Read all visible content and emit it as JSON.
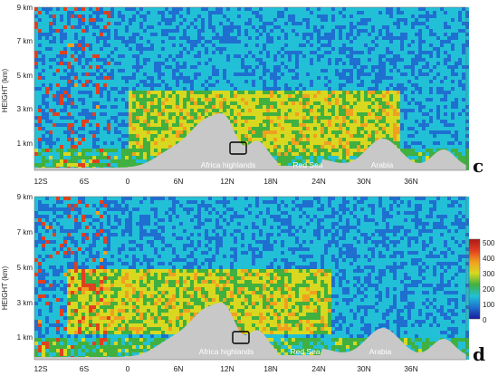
{
  "chart_data": [
    {
      "type": "heatmap",
      "panel_label": "c",
      "ylabel": "HEIGHT (km)",
      "y_ticks": [
        "9 km",
        "7 km",
        "5 km",
        "3 km",
        "1 km"
      ],
      "y_tick_values": [
        9,
        7,
        5,
        3,
        1
      ],
      "ylim": [
        0,
        9
      ],
      "x_ticks": [
        "12S",
        "6S",
        "0",
        "6N",
        "12N",
        "18N",
        "24N",
        "30N",
        "36N"
      ],
      "x_tick_values": [
        -12,
        -6,
        0,
        6,
        12,
        18,
        24,
        30,
        36
      ],
      "xlim": [
        -15,
        42
      ],
      "annotations": [
        "Africa highlands",
        "Red Sea",
        "Arabia"
      ],
      "layer": {
        "lat_start": -3,
        "lat_end": 33,
        "base_km": 1.0,
        "top_km": 4.6
      }
    },
    {
      "type": "heatmap",
      "panel_label": "d",
      "ylabel": "HEIGHT (km)",
      "y_ticks": [
        "9 km",
        "7 km",
        "5 km",
        "3 km",
        "1 km"
      ],
      "y_tick_values": [
        9,
        7,
        5,
        3,
        1
      ],
      "ylim": [
        0,
        9
      ],
      "x_ticks": [
        "12S",
        "6S",
        "0",
        "6N",
        "12N",
        "18N",
        "24N",
        "30N",
        "36N"
      ],
      "x_tick_values": [
        -12,
        -6,
        0,
        6,
        12,
        18,
        24,
        30,
        36
      ],
      "xlim": [
        -15,
        42
      ],
      "annotations": [
        "Africa highlands",
        "Red Sea",
        "Arabia"
      ],
      "layer": {
        "lat_start": -11,
        "lat_end": 24,
        "base_km": 1.5,
        "top_km": 5.0
      }
    }
  ],
  "colorbar": {
    "ticks": [
      "500",
      "400",
      "300",
      "200",
      "100",
      "0"
    ],
    "tick_values": [
      500,
      400,
      300,
      200,
      100,
      0
    ],
    "range": [
      0,
      500
    ],
    "colors": [
      "#1a1a9a",
      "#1f6fd0",
      "#22c0d6",
      "#40b040",
      "#d8d820",
      "#f0a020",
      "#e04020",
      "#b01818"
    ]
  }
}
